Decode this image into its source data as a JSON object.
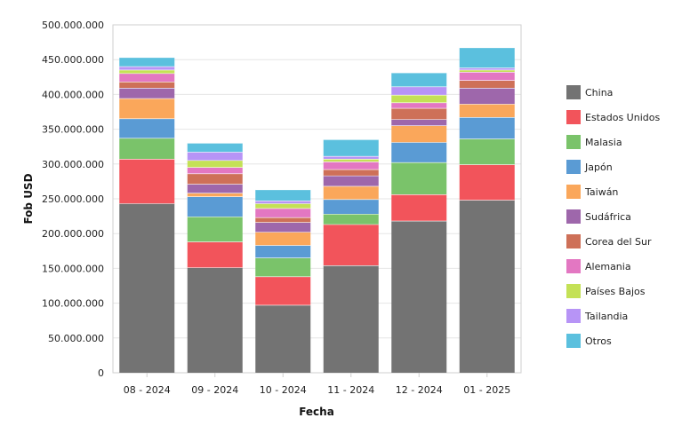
{
  "chart_data": {
    "type": "bar",
    "stacked": true,
    "title": "",
    "xlabel": "Fecha",
    "ylabel": "Fob USD",
    "ylim": [
      0,
      500000000
    ],
    "yticks": [
      0,
      50000000,
      100000000,
      150000000,
      200000000,
      250000000,
      300000000,
      350000000,
      400000000,
      450000000,
      500000000
    ],
    "ytick_labels": [
      "0",
      "50.000.000",
      "100.000.000",
      "150.000.000",
      "200.000.000",
      "250.000.000",
      "300.000.000",
      "350.000.000",
      "400.000.000",
      "450.000.000",
      "500.000.000"
    ],
    "grid": true,
    "legend_position": "right",
    "categories": [
      "08 - 2024",
      "09 - 2024",
      "10 - 2024",
      "11 - 2024",
      "12 - 2024",
      "01 - 2025"
    ],
    "series": [
      {
        "name": "China",
        "color": "#737373",
        "values": [
          243000000,
          151000000,
          97000000,
          154000000,
          218000000,
          248000000
        ]
      },
      {
        "name": "Estados Unidos",
        "color": "#f2545b",
        "values": [
          64000000,
          37000000,
          41000000,
          59000000,
          38000000,
          51000000
        ]
      },
      {
        "name": "Malasia",
        "color": "#7ac36a",
        "values": [
          30000000,
          36000000,
          27000000,
          15000000,
          46000000,
          37000000
        ]
      },
      {
        "name": "Japón",
        "color": "#5a9bd4",
        "values": [
          28000000,
          29000000,
          18000000,
          21000000,
          29000000,
          31000000
        ]
      },
      {
        "name": "Taiwán",
        "color": "#faa75b",
        "values": [
          29000000,
          5000000,
          19000000,
          19000000,
          24000000,
          19000000
        ]
      },
      {
        "name": "Sudáfrica",
        "color": "#9e67ab",
        "values": [
          15000000,
          13000000,
          14000000,
          15000000,
          9000000,
          23000000
        ]
      },
      {
        "name": "Corea del Sur",
        "color": "#ce7058",
        "values": [
          9000000,
          15000000,
          7000000,
          9000000,
          16000000,
          11000000
        ]
      },
      {
        "name": "Alemania",
        "color": "#e377c2",
        "values": [
          12000000,
          9000000,
          13000000,
          11000000,
          8000000,
          12000000
        ]
      },
      {
        "name": "Países Bajos",
        "color": "#c4e156",
        "values": [
          5000000,
          10000000,
          7000000,
          4000000,
          11000000,
          3000000
        ]
      },
      {
        "name": "Tailandia",
        "color": "#b794f6",
        "values": [
          5000000,
          12000000,
          4000000,
          4000000,
          12000000,
          3000000
        ]
      },
      {
        "name": "Otros",
        "color": "#5bc0de",
        "values": [
          13000000,
          13000000,
          16000000,
          24000000,
          20000000,
          29000000
        ]
      }
    ]
  }
}
